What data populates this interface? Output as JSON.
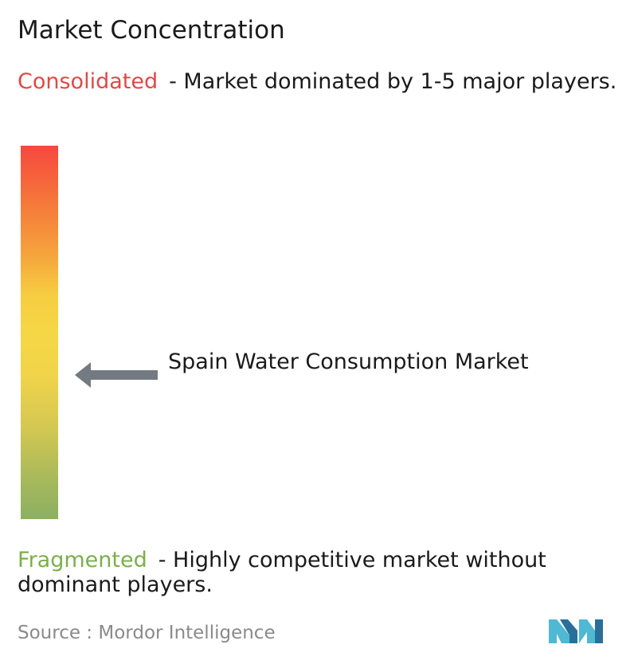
{
  "title": "Market Concentration",
  "consolidated": {
    "term": "Consolidated",
    "description": "- Market dominated by 1-5 major players.",
    "color": "#de4a46"
  },
  "fragmented": {
    "term": "Fragmented",
    "description": "- Highly competitive market without dominant players.",
    "color": "#7cae4c"
  },
  "gauge": {
    "colors": [
      "#f6483f",
      "#f5a33c",
      "#f5d745",
      "#8cb061"
    ],
    "indicator_icon": "left-arrow-icon",
    "market_label": "Spain Water Consumption Market"
  },
  "source": {
    "prefix": "Source :",
    "name": "Mordor Intelligence"
  },
  "logo": {
    "icon": "mordor-intelligence-logo-icon",
    "colors": [
      "#4fb8d3",
      "#2a6f9a"
    ]
  }
}
